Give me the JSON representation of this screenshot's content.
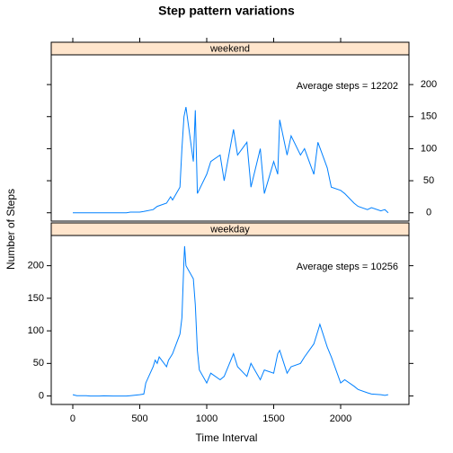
{
  "chart_data": {
    "type": "line",
    "title": "Step pattern variations",
    "xlabel": "Time Interval",
    "ylabel": "Number of Steps",
    "xlim": [
      -161,
      2510
    ],
    "ylim": [
      -13,
      245
    ],
    "xticks": [
      0,
      500,
      1000,
      1500,
      2000
    ],
    "yticks": [
      0,
      50,
      100,
      150,
      200
    ],
    "series": [
      {
        "name": "weekend",
        "annotation": "Average steps =  12202",
        "color": "#0080ff",
        "x": [
          0,
          100,
          200,
          300,
          400,
          430,
          500,
          530,
          600,
          630,
          700,
          730,
          745,
          800,
          815,
          830,
          845,
          900,
          915,
          930,
          1000,
          1030,
          1100,
          1130,
          1200,
          1230,
          1300,
          1330,
          1400,
          1430,
          1500,
          1530,
          1545,
          1600,
          1630,
          1700,
          1730,
          1800,
          1830,
          1900,
          1930,
          2000,
          2030,
          2100,
          2130,
          2200,
          2230,
          2300,
          2330,
          2355
        ],
        "values": [
          0,
          0,
          0,
          0,
          0,
          1,
          1,
          2,
          5,
          10,
          15,
          25,
          20,
          40,
          100,
          150,
          165,
          80,
          160,
          30,
          60,
          80,
          90,
          50,
          130,
          90,
          110,
          40,
          100,
          30,
          80,
          60,
          145,
          90,
          120,
          90,
          100,
          60,
          110,
          70,
          40,
          35,
          30,
          15,
          10,
          5,
          8,
          3,
          5,
          0
        ]
      },
      {
        "name": "weekday",
        "annotation": "Average steps =  10256",
        "color": "#0080ff",
        "x": [
          0,
          30,
          100,
          130,
          200,
          230,
          300,
          330,
          400,
          430,
          500,
          530,
          545,
          600,
          615,
          630,
          645,
          700,
          715,
          730,
          745,
          800,
          815,
          830,
          835,
          845,
          900,
          915,
          930,
          945,
          1000,
          1030,
          1100,
          1130,
          1200,
          1230,
          1300,
          1330,
          1400,
          1430,
          1500,
          1530,
          1545,
          1600,
          1630,
          1700,
          1730,
          1800,
          1830,
          1845,
          1900,
          1930,
          2000,
          2030,
          2100,
          2130,
          2200,
          2230,
          2300,
          2330,
          2355
        ],
        "values": [
          2,
          0.5,
          0.4,
          0,
          0,
          0.2,
          0,
          0,
          0,
          0.5,
          2,
          3,
          20,
          45,
          55,
          50,
          60,
          45,
          55,
          60,
          65,
          95,
          120,
          210,
          230,
          200,
          180,
          140,
          70,
          40,
          20,
          35,
          25,
          30,
          65,
          45,
          30,
          50,
          25,
          40,
          35,
          65,
          70,
          35,
          45,
          50,
          60,
          80,
          100,
          110,
          75,
          60,
          20,
          25,
          15,
          10,
          5,
          3,
          2,
          1,
          2
        ]
      }
    ]
  }
}
